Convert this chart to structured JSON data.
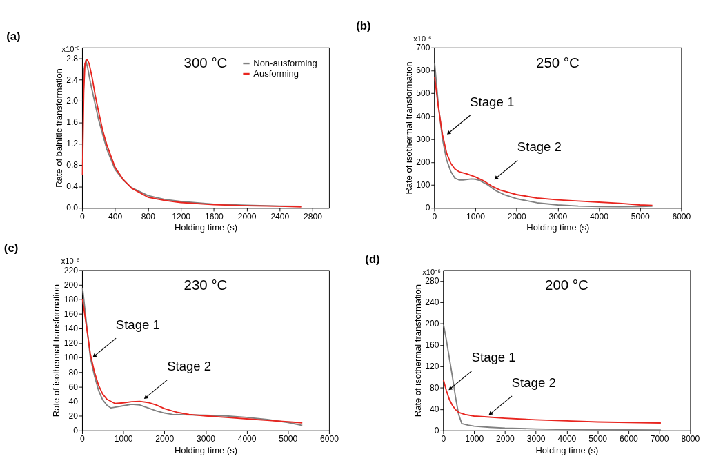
{
  "chart_data": [
    {
      "type": "line",
      "title": "(a)",
      "xlabel": "Holding time (s)",
      "ylabel": "Rate of bainitic transformation",
      "legend": "top right",
      "annotations": [
        "300 °C",
        "x10⁻³"
      ],
      "xlim": [
        0,
        3000
      ],
      "xticks": [
        0,
        400,
        800,
        1200,
        1600,
        2000,
        2400,
        2800
      ],
      "ylim": [
        0,
        3.0
      ],
      "yticks": [
        {
          "value": 0,
          "label": "0.0"
        },
        0.4,
        0.8,
        1.2,
        1.6,
        {
          "value": 2.0,
          "label": "2.0"
        },
        2.4,
        2.8
      ],
      "series": [
        {
          "name": "Non-ausforming",
          "color": "#808080",
          "x": [
            15,
            25,
            45,
            70,
            100,
            150,
            200,
            300,
            400,
            500,
            600,
            800,
            1000,
            1200,
            1600,
            2000,
            2400,
            2670
          ],
          "values": [
            2.0,
            2.6,
            2.76,
            2.6,
            2.35,
            2.0,
            1.65,
            1.1,
            0.72,
            0.52,
            0.38,
            0.23,
            0.16,
            0.12,
            0.07,
            0.05,
            0.035,
            0.03
          ]
        },
        {
          "name": "Ausforming",
          "color": "#e8251f",
          "x": [
            5,
            10,
            20,
            35,
            60,
            85,
            120,
            160,
            200,
            250,
            300,
            400,
            500,
            600,
            800,
            1000,
            1200,
            1600,
            2000,
            2400,
            2670
          ],
          "values": [
            0.62,
            1.2,
            2.2,
            2.7,
            2.78,
            2.7,
            2.45,
            2.1,
            1.8,
            1.45,
            1.18,
            0.76,
            0.53,
            0.37,
            0.2,
            0.14,
            0.1,
            0.06,
            0.04,
            0.03,
            0.02
          ]
        }
      ]
    },
    {
      "type": "line",
      "title": "(b)",
      "xlabel": "Holding time (s)",
      "ylabel": "Rate of isothermal transformation",
      "annotations": [
        "250 °C",
        "x10⁻⁶",
        {
          "text": "Stage 1",
          "x": 345,
          "y": 326
        },
        {
          "text": "Stage 2",
          "x": 1495,
          "y": 129
        }
      ],
      "xlim": [
        0,
        6000
      ],
      "xticks": [
        0,
        1000,
        2000,
        3000,
        4000,
        5000,
        6000
      ],
      "ylim": [
        0,
        700
      ],
      "yticks": [
        0,
        100,
        200,
        300,
        400,
        500,
        600,
        700
      ],
      "series": [
        {
          "color": "#808080",
          "x": [
            10,
            100,
            200,
            300,
            400,
            500,
            600,
            700,
            900,
            1000,
            1100,
            1300,
            1500,
            1700,
            2000,
            2500,
            3000,
            3500,
            4000,
            4500,
            5000,
            5300
          ],
          "values": [
            630,
            450,
            300,
            210,
            160,
            130,
            122,
            122,
            126,
            125,
            120,
            100,
            75,
            58,
            40,
            22,
            13,
            8,
            6,
            5,
            6,
            7
          ]
        },
        {
          "color": "#e8251f",
          "x": [
            10,
            100,
            200,
            300,
            400,
            500,
            600,
            800,
            1000,
            1200,
            1400,
            1600,
            2000,
            2500,
            3000,
            3500,
            4000,
            4500,
            5000,
            5300
          ],
          "values": [
            570,
            440,
            320,
            240,
            195,
            170,
            158,
            148,
            135,
            118,
            95,
            78,
            58,
            43,
            35,
            30,
            25,
            20,
            13,
            11
          ]
        }
      ]
    },
    {
      "type": "line",
      "title": "(c)",
      "xlabel": "Holding time (s)",
      "ylabel": "Rate of isothermal transformation",
      "annotations": [
        "230 °C",
        "x10⁻⁶",
        {
          "text": "Stage 1",
          "x": 294,
          "y": 102
        },
        {
          "text": "Stage 2",
          "x": 1541,
          "y": 45
        }
      ],
      "xlim": [
        0,
        6000
      ],
      "xticks": [
        0,
        1000,
        2000,
        3000,
        4000,
        5000,
        6000
      ],
      "ylim": [
        0,
        220
      ],
      "yticks": [
        0,
        20,
        40,
        60,
        80,
        100,
        120,
        140,
        160,
        180,
        200,
        220
      ],
      "series": [
        {
          "color": "#808080",
          "x": [
            10,
            100,
            200,
            300,
            400,
            500,
            600,
            700,
            800,
            1000,
            1200,
            1400,
            1600,
            1800,
            2000,
            2200,
            2500,
            3000,
            3500,
            4000,
            4500,
            5000,
            5350
          ],
          "values": [
            196,
            150,
            100,
            75,
            55,
            42,
            35,
            31,
            32,
            34,
            36,
            35,
            31,
            27,
            24,
            22,
            21.5,
            21,
            20,
            18,
            15,
            11,
            7
          ]
        },
        {
          "color": "#e8251f",
          "x": [
            10,
            100,
            200,
            300,
            400,
            500,
            600,
            800,
            1000,
            1200,
            1400,
            1600,
            1800,
            2000,
            2300,
            2600,
            3000,
            3500,
            4000,
            4500,
            5000,
            5350
          ],
          "values": [
            180,
            145,
            105,
            80,
            62,
            50,
            43,
            37,
            38,
            39.5,
            40,
            38.5,
            35,
            30,
            25,
            22,
            20,
            18,
            16,
            14,
            12,
            10.5
          ]
        }
      ]
    },
    {
      "type": "line",
      "title": "(d)",
      "xlabel": "Holding time (s)",
      "ylabel": "Rate of isothermal transformation",
      "annotations": [
        "200 °C",
        "x10⁻⁶",
        {
          "text": "Stage 1",
          "x": 222,
          "y": 78
        },
        {
          "text": "Stage 2",
          "x": 1521,
          "y": 31
        }
      ],
      "xlim": [
        0,
        8000
      ],
      "xticks": [
        0,
        1000,
        2000,
        3000,
        4000,
        5000,
        6000,
        7000,
        8000
      ],
      "ylim": [
        0,
        300
      ],
      "yticks": [
        0,
        40,
        80,
        120,
        160,
        200,
        240,
        280
      ],
      "series": [
        {
          "color": "#808080",
          "x": [
            10,
            100,
            200,
            300,
            400,
            500,
            600,
            800,
            1000,
            1500,
            2000,
            3000,
            4000,
            5000,
            6000,
            7050
          ],
          "values": [
            198,
            170,
            135,
            100,
            62,
            30,
            13,
            10,
            8,
            6,
            4.5,
            3,
            2,
            1.5,
            1.2,
            1
          ]
        },
        {
          "color": "#e8251f",
          "x": [
            10,
            100,
            200,
            300,
            400,
            500,
            700,
            1000,
            1500,
            2000,
            3000,
            4000,
            5000,
            6000,
            7050
          ],
          "values": [
            94,
            75,
            58,
            47,
            39,
            34,
            30,
            27,
            25,
            23,
            20,
            18,
            16,
            15,
            14
          ]
        }
      ]
    }
  ]
}
